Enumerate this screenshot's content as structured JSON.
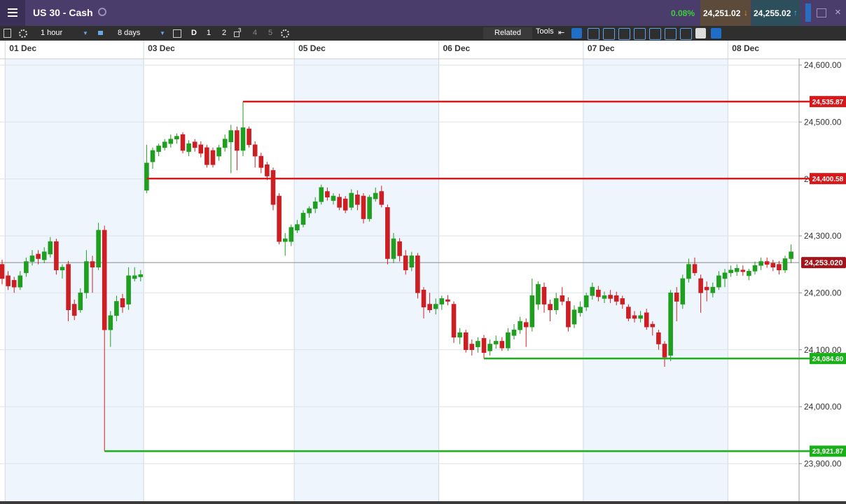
{
  "header": {
    "title": "US 30 - Cash",
    "change": "0.08%",
    "bid": "24,251.02",
    "ask": "24,255.02"
  },
  "toolbar": {
    "interval": "1 hour",
    "range": "8 days",
    "buttons": [
      "D",
      "1",
      "2",
      "3",
      "4",
      "5"
    ],
    "related": "Related",
    "tools": "Tools"
  },
  "chart_data": {
    "type": "candlestick",
    "categories": [
      null,
      "01 Dec",
      null,
      null,
      null,
      null,
      null,
      null,
      null,
      null,
      null,
      null,
      null,
      null,
      null,
      null,
      null,
      null,
      null,
      null,
      null,
      null,
      null,
      null,
      "03 Dec",
      null,
      null,
      null,
      null,
      null,
      null,
      null,
      null,
      null,
      null,
      null,
      null,
      null,
      null,
      null,
      null,
      null,
      null,
      null,
      null,
      null,
      null,
      null,
      null,
      "05 Dec",
      null,
      null,
      null,
      null,
      null,
      null,
      null,
      null,
      null,
      null,
      null,
      null,
      null,
      null,
      null,
      null,
      null,
      null,
      null,
      null,
      null,
      null,
      null,
      "06 Dec",
      null,
      null,
      null,
      null,
      null,
      null,
      null,
      null,
      null,
      null,
      null,
      null,
      null,
      null,
      null,
      null,
      null,
      null,
      null,
      null,
      null,
      null,
      null,
      "07 Dec",
      null,
      null,
      null,
      null,
      null,
      null,
      null,
      null,
      null,
      null,
      null,
      null,
      null,
      null,
      null,
      null,
      null,
      null,
      null,
      null,
      null,
      null,
      null,
      "08 Dec",
      null,
      null,
      null,
      null,
      null,
      null,
      null,
      null,
      null,
      null
    ],
    "candles": [
      [
        24250,
        24258,
        24215,
        24225
      ],
      [
        24230,
        24238,
        24205,
        24212
      ],
      [
        24222,
        24228,
        24200,
        24210
      ],
      [
        24210,
        24238,
        24205,
        24230
      ],
      [
        24235,
        24262,
        24228,
        24255
      ],
      [
        24255,
        24275,
        24248,
        24265
      ],
      [
        24268,
        24275,
        24250,
        24260
      ],
      [
        24258,
        24280,
        24252,
        24272
      ],
      [
        24268,
        24298,
        24262,
        24290
      ],
      [
        24290,
        24295,
        24232,
        24240
      ],
      [
        24240,
        24250,
        24225,
        24245
      ],
      [
        24250,
        24256,
        24150,
        24170
      ],
      [
        24180,
        24188,
        24152,
        24160
      ],
      [
        24170,
        24208,
        24165,
        24200
      ],
      [
        24200,
        24275,
        24190,
        24255
      ],
      [
        24255,
        24265,
        24200,
        24245
      ],
      [
        24245,
        24323,
        24240,
        24310
      ],
      [
        24310,
        24318,
        23921.87,
        24135
      ],
      [
        24135,
        24168,
        24105,
        24160
      ],
      [
        24160,
        24195,
        24150,
        24185
      ],
      [
        24190,
        24198,
        24165,
        24175
      ],
      [
        24180,
        24245,
        24170,
        24230
      ],
      [
        24225,
        24245,
        24220,
        24230
      ],
      [
        24228,
        24240,
        24220,
        24232
      ],
      [
        24380,
        24460,
        24375,
        24428
      ],
      [
        24430,
        24455,
        24418,
        24450
      ],
      [
        24448,
        24462,
        24440,
        24458
      ],
      [
        24455,
        24470,
        24450,
        24465
      ],
      [
        24462,
        24478,
        24455,
        24470
      ],
      [
        24470,
        24480,
        24462,
        24475
      ],
      [
        24478,
        24482,
        24445,
        24450
      ],
      [
        24448,
        24468,
        24440,
        24462
      ],
      [
        24465,
        24470,
        24448,
        24455
      ],
      [
        24460,
        24466,
        24438,
        24445
      ],
      [
        24455,
        24460,
        24420,
        24425
      ],
      [
        24450,
        24455,
        24420,
        24425
      ],
      [
        24440,
        24460,
        24432,
        24455
      ],
      [
        24455,
        24478,
        24448,
        24470
      ],
      [
        24465,
        24495,
        24410,
        24485
      ],
      [
        24485,
        24492,
        24415,
        24450
      ],
      [
        24450,
        24535.87,
        24440,
        24490
      ],
      [
        24488,
        24492,
        24455,
        24460
      ],
      [
        24460,
        24466,
        24420,
        24440
      ],
      [
        24440,
        24446,
        24410,
        24420
      ],
      [
        24425,
        24430,
        24398,
        24405
      ],
      [
        24415,
        24420,
        24345,
        24355
      ],
      [
        24370,
        24375,
        24285,
        24290
      ],
      [
        24290,
        24305,
        24265,
        24295
      ],
      [
        24290,
        24320,
        24282,
        24315
      ],
      [
        24310,
        24328,
        24305,
        24320
      ],
      [
        24320,
        24345,
        24315,
        24340
      ],
      [
        24340,
        24352,
        24332,
        24348
      ],
      [
        24348,
        24368,
        24340,
        24360
      ],
      [
        24360,
        24390,
        24355,
        24385
      ],
      [
        24378,
        24385,
        24362,
        24368
      ],
      [
        24362,
        24375,
        24355,
        24370
      ],
      [
        24368,
        24374,
        24345,
        24350
      ],
      [
        24365,
        24370,
        24340,
        24345
      ],
      [
        24350,
        24382,
        24345,
        24375
      ],
      [
        24372,
        24380,
        24345,
        24355
      ],
      [
        24370,
        24375,
        24322,
        24330
      ],
      [
        24330,
        24372,
        24325,
        24368
      ],
      [
        24365,
        24385,
        24360,
        24375
      ],
      [
        24378,
        24388,
        24350,
        24355
      ],
      [
        24350,
        24355,
        24250,
        24260
      ],
      [
        24260,
        24305,
        24252,
        24295
      ],
      [
        24290,
        24296,
        24255,
        24265
      ],
      [
        24265,
        24275,
        24232,
        24240
      ],
      [
        24245,
        24272,
        24238,
        24265
      ],
      [
        24265,
        24270,
        24190,
        24200
      ],
      [
        24205,
        24210,
        24155,
        24175
      ],
      [
        24180,
        24200,
        24165,
        24170
      ],
      [
        24172,
        24190,
        24162,
        24180
      ],
      [
        24180,
        24195,
        24170,
        24190
      ],
      [
        24188,
        24196,
        24178,
        24185
      ],
      [
        24180,
        24185,
        24112,
        24122
      ],
      [
        24122,
        24138,
        24110,
        24130
      ],
      [
        24130,
        24135,
        24095,
        24100
      ],
      [
        24110,
        24118,
        24090,
        24100
      ],
      [
        24105,
        24122,
        24095,
        24115
      ],
      [
        24120,
        24126,
        24084.6,
        24095
      ],
      [
        24098,
        24118,
        24090,
        24110
      ],
      [
        24110,
        24125,
        24102,
        24115
      ],
      [
        24115,
        24122,
        24098,
        24103
      ],
      [
        24103,
        24138,
        24098,
        24130
      ],
      [
        24125,
        24145,
        24118,
        24135
      ],
      [
        24135,
        24158,
        24128,
        24150
      ],
      [
        24148,
        24155,
        24105,
        24140
      ],
      [
        24140,
        24225,
        24132,
        24195
      ],
      [
        24180,
        24220,
        24170,
        24215
      ],
      [
        24210,
        24218,
        24165,
        24180
      ],
      [
        24180,
        24188,
        24150,
        24170
      ],
      [
        24170,
        24200,
        24162,
        24190
      ],
      [
        24195,
        24210,
        24178,
        24185
      ],
      [
        24185,
        24192,
        24132,
        24140
      ],
      [
        24145,
        24178,
        24138,
        24170
      ],
      [
        24165,
        24185,
        24158,
        24175
      ],
      [
        24175,
        24200,
        24168,
        24195
      ],
      [
        24195,
        24218,
        24188,
        24210
      ],
      [
        24205,
        24212,
        24185,
        24193
      ],
      [
        24190,
        24202,
        24182,
        24195
      ],
      [
        24196,
        24205,
        24182,
        24190
      ],
      [
        24195,
        24202,
        24178,
        24185
      ],
      [
        24190,
        24195,
        24172,
        24180
      ],
      [
        24175,
        24180,
        24150,
        24155
      ],
      [
        24160,
        24168,
        24148,
        24155
      ],
      [
        24155,
        24168,
        24148,
        24160
      ],
      [
        24165,
        24172,
        24135,
        24140
      ],
      [
        24145,
        24150,
        24125,
        24140
      ],
      [
        24130,
        24135,
        24100,
        24110
      ],
      [
        24110,
        24115,
        24070,
        24087
      ],
      [
        24090,
        24205,
        24080,
        24200
      ],
      [
        24200,
        24210,
        24150,
        24185
      ],
      [
        24180,
        24232,
        24172,
        24225
      ],
      [
        24225,
        24260,
        24218,
        24250
      ],
      [
        24250,
        24262,
        24230,
        24235
      ],
      [
        24225,
        24232,
        24165,
        24200
      ],
      [
        24210,
        24220,
        24185,
        24205
      ],
      [
        24200,
        24218,
        24192,
        24210
      ],
      [
        24210,
        24238,
        24205,
        24230
      ],
      [
        24225,
        24242,
        24210,
        24235
      ],
      [
        24235,
        24248,
        24228,
        24240
      ],
      [
        24237,
        24250,
        24230,
        24243
      ],
      [
        24240,
        24248,
        24230,
        24237
      ],
      [
        24230,
        24242,
        24222,
        24238
      ],
      [
        24238,
        24255,
        24232,
        24248
      ],
      [
        24248,
        24262,
        24240,
        24255
      ],
      [
        24255,
        24262,
        24244,
        24250
      ],
      [
        24252,
        24258,
        24238,
        24245
      ],
      [
        24250,
        24256,
        24232,
        24240
      ],
      [
        24240,
        24265,
        24235,
        24260
      ],
      [
        24260,
        24285,
        24252,
        24272
      ]
    ],
    "up_color": "#1f9e1f",
    "down_color": "#cc1f24",
    "ylim": [
      23834,
      24611
    ],
    "yticks": [
      {
        "value": 23900,
        "label": "23,900.00"
      },
      {
        "value": 24000,
        "label": "24,000.00"
      },
      {
        "value": 24100,
        "label": "24,100.00"
      },
      {
        "value": 24200,
        "label": "24,200.00"
      },
      {
        "value": 24300,
        "label": "24,300.00"
      },
      {
        "value": 24400,
        "label": "24,400.00"
      },
      {
        "value": 24500,
        "label": "24,500.00"
      },
      {
        "value": 24600,
        "label": "24,600.00"
      }
    ],
    "grid": true,
    "levels": [
      {
        "value": 24535.87,
        "label": "24,535.87",
        "color": "#d7191c"
      },
      {
        "value": 24400.58,
        "label": "24,400.58",
        "color": "#d7191c"
      },
      {
        "value": 24084.6,
        "label": "24,084.60",
        "color": "#19b019"
      },
      {
        "value": 23921.87,
        "label": "23,921.87",
        "color": "#19b019"
      }
    ],
    "last_price": {
      "value": 24253.02,
      "label": "24,253.020",
      "color": "#a5141b"
    }
  }
}
